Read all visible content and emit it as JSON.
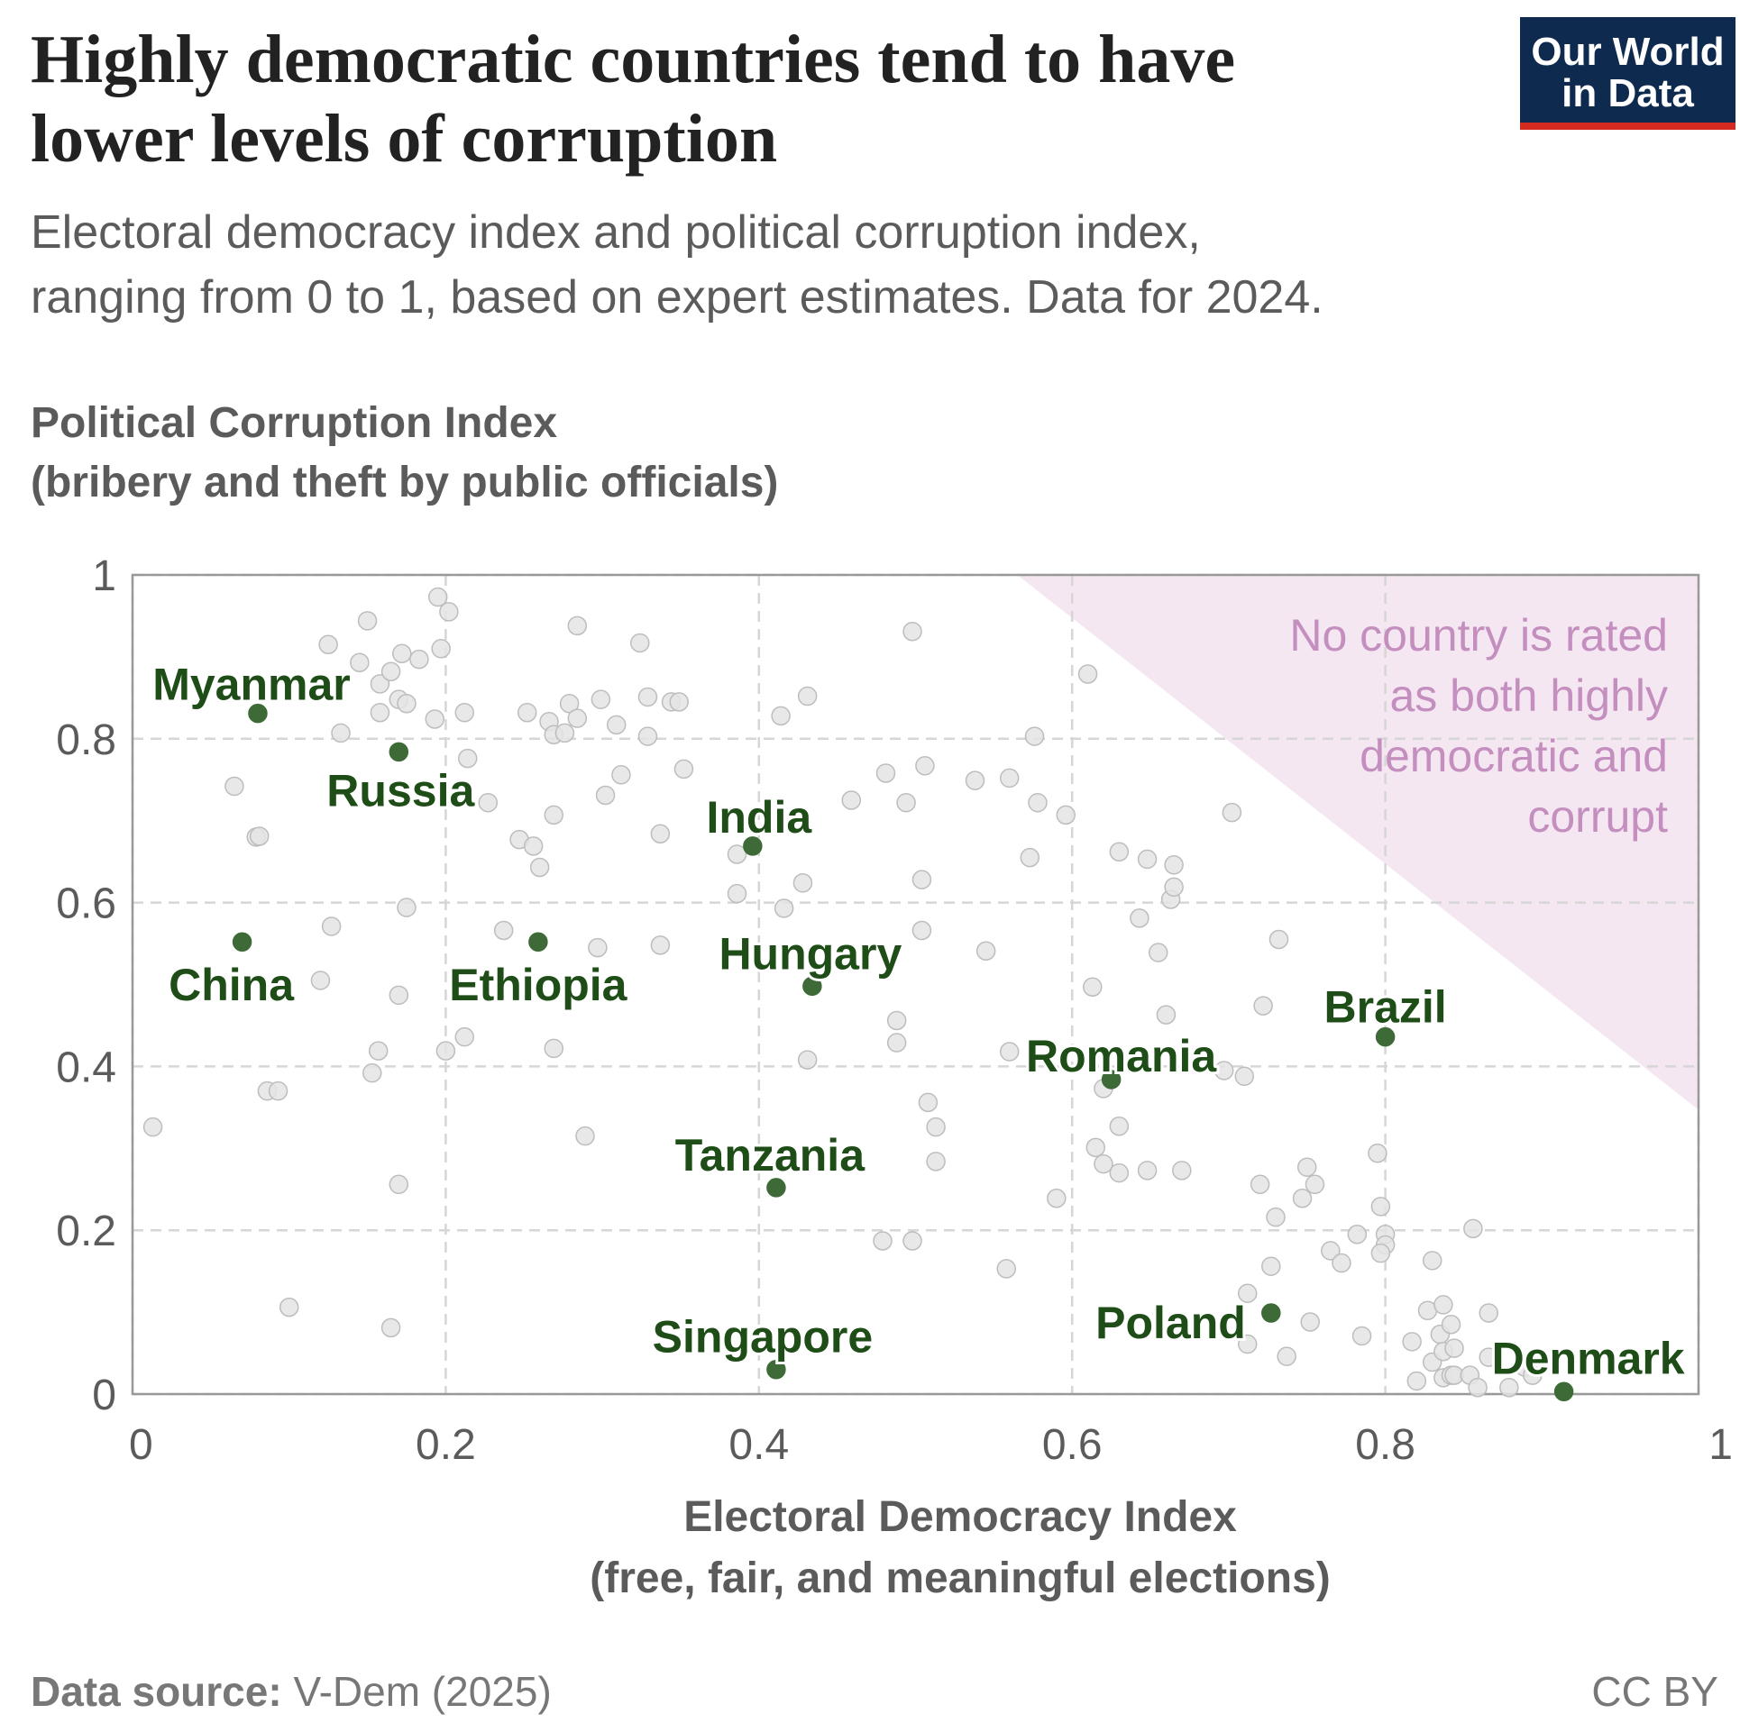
{
  "chart_data": {
    "type": "scatter",
    "title": "Highly democratic countries tend to have\nlower levels of corruption",
    "subtitle": "Electoral democracy index and political corruption index,\nranging from 0 to 1, based on expert estimates. Data for 2024.",
    "y_label": "Political Corruption Index\n(bribery and theft by public officials)",
    "x_label": "Electoral Democracy Index\n(free, fair, and meaningful elections)",
    "annotation": "No country is rated\nas both highly\ndemocratic and\ncorrupt",
    "annotation_region": {
      "x": [
        0.565,
        1,
        1
      ],
      "y": [
        1,
        1,
        0.347
      ],
      "color": "#f4e7f2"
    },
    "source_label": "Data source:",
    "source": "V-Dem (2025)",
    "license": "CC BY",
    "logo": "Our World\nin Data",
    "xlim": [
      0,
      1
    ],
    "ylim": [
      0,
      1
    ],
    "xticks": [
      0,
      0.2,
      0.4,
      0.6,
      0.8,
      1
    ],
    "yticks": [
      0,
      0.2,
      0.4,
      0.6,
      0.8,
      1
    ],
    "grid": true,
    "series": [
      {
        "color": "#e4e4e4",
        "x": [
          0.013,
          0.065,
          0.079,
          0.081,
          0.086,
          0.093,
          0.1,
          0.12,
          0.125,
          0.127,
          0.133,
          0.145,
          0.15,
          0.153,
          0.157,
          0.158,
          0.158,
          0.165,
          0.165,
          0.17,
          0.17,
          0.17,
          0.172,
          0.175,
          0.175,
          0.183,
          0.193,
          0.195,
          0.197,
          0.2,
          0.202,
          0.212,
          0.212,
          0.214,
          0.227,
          0.237,
          0.247,
          0.252,
          0.256,
          0.26,
          0.266,
          0.269,
          0.269,
          0.269,
          0.276,
          0.279,
          0.284,
          0.284,
          0.289,
          0.297,
          0.299,
          0.302,
          0.309,
          0.312,
          0.324,
          0.329,
          0.329,
          0.337,
          0.337,
          0.344,
          0.349,
          0.352,
          0.386,
          0.386,
          0.414,
          0.416,
          0.428,
          0.431,
          0.431,
          0.459,
          0.479,
          0.481,
          0.488,
          0.488,
          0.494,
          0.498,
          0.498,
          0.504,
          0.504,
          0.506,
          0.508,
          0.513,
          0.513,
          0.538,
          0.545,
          0.558,
          0.56,
          0.56,
          0.573,
          0.576,
          0.578,
          0.59,
          0.596,
          0.61,
          0.613,
          0.615,
          0.62,
          0.62,
          0.63,
          0.63,
          0.63,
          0.643,
          0.648,
          0.648,
          0.655,
          0.66,
          0.663,
          0.665,
          0.665,
          0.67,
          0.697,
          0.702,
          0.71,
          0.712,
          0.712,
          0.72,
          0.722,
          0.727,
          0.73,
          0.732,
          0.737,
          0.747,
          0.75,
          0.752,
          0.755,
          0.765,
          0.772,
          0.782,
          0.785,
          0.795,
          0.797,
          0.8,
          0.8,
          0.797,
          0.817,
          0.82,
          0.827,
          0.83,
          0.83,
          0.835,
          0.837,
          0.837,
          0.837,
          0.842,
          0.842,
          0.844,
          0.844,
          0.854,
          0.856,
          0.859,
          0.866,
          0.866,
          0.879,
          0.889,
          0.894
        ],
        "values": [
          0.326,
          0.742,
          0.68,
          0.681,
          0.37,
          0.37,
          0.106,
          0.505,
          0.915,
          0.571,
          0.807,
          0.893,
          0.944,
          0.392,
          0.419,
          0.867,
          0.832,
          0.081,
          0.882,
          0.848,
          0.487,
          0.256,
          0.904,
          0.843,
          0.594,
          0.897,
          0.824,
          0.973,
          0.91,
          0.419,
          0.955,
          0.832,
          0.436,
          0.776,
          0.722,
          0.566,
          0.677,
          0.832,
          0.669,
          0.643,
          0.821,
          0.707,
          0.422,
          0.805,
          0.807,
          0.843,
          0.825,
          0.938,
          0.315,
          0.545,
          0.848,
          0.731,
          0.817,
          0.756,
          0.917,
          0.851,
          0.803,
          0.684,
          0.548,
          0.845,
          0.845,
          0.763,
          0.659,
          0.611,
          0.828,
          0.593,
          0.624,
          0.852,
          0.408,
          0.725,
          0.187,
          0.758,
          0.456,
          0.429,
          0.722,
          0.931,
          0.187,
          0.628,
          0.566,
          0.767,
          0.356,
          0.326,
          0.284,
          0.749,
          0.541,
          0.153,
          0.752,
          0.418,
          0.655,
          0.803,
          0.722,
          0.239,
          0.707,
          0.879,
          0.497,
          0.301,
          0.373,
          0.281,
          0.662,
          0.327,
          0.27,
          0.581,
          0.653,
          0.273,
          0.539,
          0.463,
          0.604,
          0.619,
          0.646,
          0.273,
          0.395,
          0.71,
          0.388,
          0.123,
          0.061,
          0.256,
          0.474,
          0.156,
          0.216,
          0.555,
          0.046,
          0.239,
          0.277,
          0.088,
          0.256,
          0.175,
          0.16,
          0.195,
          0.071,
          0.294,
          0.229,
          0.195,
          0.182,
          0.172,
          0.064,
          0.016,
          0.102,
          0.163,
          0.039,
          0.073,
          0.109,
          0.052,
          0.02,
          0.085,
          0.023,
          0.056,
          0.023,
          0.023,
          0.202,
          0.008,
          0.099,
          0.045,
          0.008,
          0.033,
          0.023
        ]
      },
      {
        "color": "#3e6a38",
        "labels": [
          "Myanmar",
          "Russia",
          "China",
          "Ethiopia",
          "India",
          "Hungary",
          "Tanzania",
          "Singapore",
          "Romania",
          "Brazil",
          "Poland",
          "Denmark"
        ],
        "x": [
          0.08,
          0.17,
          0.07,
          0.259,
          0.396,
          0.434,
          0.411,
          0.411,
          0.625,
          0.8,
          0.727,
          0.914
        ],
        "values": [
          0.831,
          0.784,
          0.552,
          0.552,
          0.669,
          0.498,
          0.252,
          0.03,
          0.384,
          0.436,
          0.099,
          0.003
        ]
      }
    ]
  }
}
